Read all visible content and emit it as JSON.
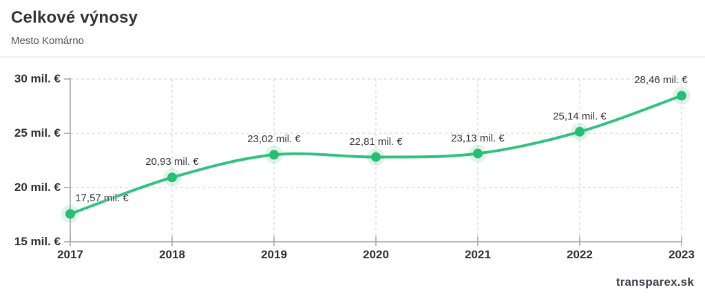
{
  "footer": {
    "brand": "transparex.sk"
  },
  "chart_data": {
    "type": "line",
    "title": "Celkové výnosy",
    "subtitle": "Mesto Komárno",
    "categories": [
      "2017",
      "2018",
      "2019",
      "2020",
      "2021",
      "2022",
      "2023"
    ],
    "series": [
      {
        "name": "Celkové výnosy",
        "values": [
          17.57,
          20.93,
          23.02,
          22.81,
          23.13,
          25.14,
          28.46
        ]
      }
    ],
    "point_labels": [
      "17,57 mil. €",
      "20,93 mil. €",
      "23,02 mil. €",
      "22,81 mil. €",
      "23,13 mil. €",
      "25,14 mil. €",
      "28,46 mil. €"
    ],
    "y_ticks": [
      {
        "value": 30,
        "label": "30 mil. €"
      },
      {
        "value": 25,
        "label": "25 mil. €"
      },
      {
        "value": 20,
        "label": "20 mil. €"
      },
      {
        "value": 15,
        "label": "15 mil. €"
      }
    ],
    "ylim": [
      15,
      30
    ],
    "xlabel": "",
    "ylabel": "",
    "grid": "dashed",
    "legend": "none",
    "line_shape": "spline",
    "colors": {
      "line": "#30c27f",
      "marker": "#2abb74",
      "halo": "rgba(42,187,116,0.15)",
      "grid": "#dcdcdc",
      "axis": "#a2a2a2",
      "label": "#303030"
    }
  }
}
